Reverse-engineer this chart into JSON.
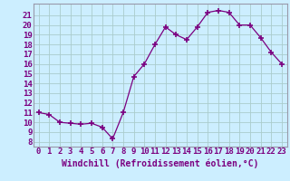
{
  "x": [
    0,
    1,
    2,
    3,
    4,
    5,
    6,
    7,
    8,
    9,
    10,
    11,
    12,
    13,
    14,
    15,
    16,
    17,
    18,
    19,
    20,
    21,
    22,
    23
  ],
  "y": [
    11,
    10.8,
    10,
    9.9,
    9.8,
    9.9,
    9.5,
    8.3,
    11,
    14.7,
    16,
    18,
    19.8,
    19,
    18.5,
    19.8,
    21.3,
    21.5,
    21.3,
    20,
    20,
    18.7,
    17.2,
    16
  ],
  "line_color": "#7b0080",
  "marker": "+",
  "bg_color": "#cceeff",
  "grid_color": "#aacccc",
  "xlabel": "Windchill (Refroidissement éolien,°C)",
  "ylabel_ticks": [
    8,
    9,
    10,
    11,
    12,
    13,
    14,
    15,
    16,
    17,
    18,
    19,
    20,
    21
  ],
  "ylim": [
    7.5,
    22.2
  ],
  "xlim": [
    -0.5,
    23.5
  ],
  "label_color": "#7b0080",
  "tick_color": "#7b0080",
  "font_size": 6.5
}
